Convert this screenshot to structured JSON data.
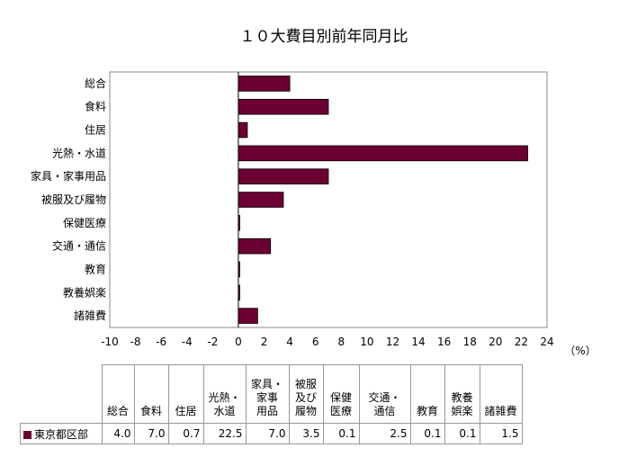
{
  "chart_data": {
    "type": "bar",
    "orientation": "horizontal",
    "title": "１０大費目別前年同月比",
    "xunit": "（%）",
    "categories": [
      "総合",
      "食料",
      "住居",
      "光熱・水道",
      "家具・家事用品",
      "被服及び履物",
      "保健医療",
      "交通・通信",
      "教育",
      "教養娯楽",
      "諸雑費"
    ],
    "table_headers": [
      "総合",
      "食料",
      "住居",
      "光熱・\n水道",
      "家具・\n家事\n用品",
      "被服\n及び\n履物",
      "保健\n医療",
      "交通・\n通信",
      "教育",
      "教養\n娯楽",
      "諸雑費"
    ],
    "series": [
      {
        "name": "東京都区部",
        "color": "#6b0033",
        "values": [
          4.0,
          7.0,
          0.7,
          22.5,
          7.0,
          3.5,
          0.1,
          2.5,
          0.1,
          0.1,
          1.5
        ]
      }
    ],
    "xlim": [
      -10,
      24
    ],
    "xticks": [
      -10,
      -8,
      -6,
      -4,
      -2,
      0,
      2,
      4,
      6,
      8,
      10,
      12,
      14,
      16,
      18,
      20,
      22,
      24
    ],
    "grid": false,
    "legend": "table"
  }
}
